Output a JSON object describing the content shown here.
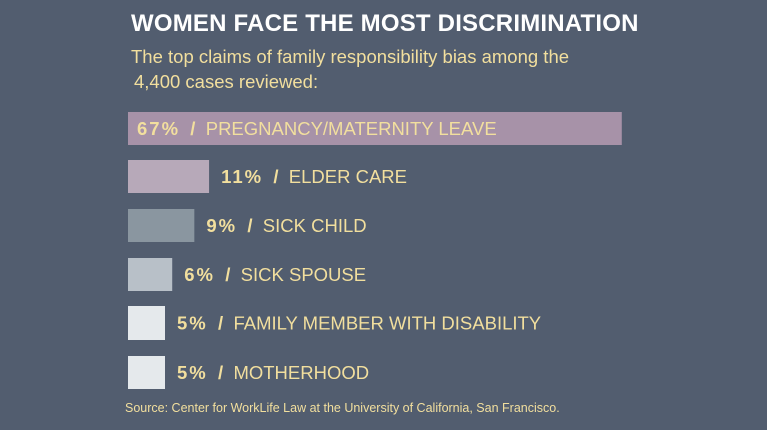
{
  "header": {
    "title": "WOMEN FACE THE MOST DISCRIMINATION",
    "subtitle_line1": "The top claims of family responsibility bias among the",
    "subtitle_line2": "4,400 cases reviewed:"
  },
  "footer": {
    "source": "Source: Center for WorkLife Law at the University of California, San Francisco."
  },
  "colors": {
    "background": "#525d6f",
    "title": "#ffffff",
    "text": "#f2df9e",
    "bar_colors": [
      "#a792a8",
      "#b7a9b9",
      "#8a96a0",
      "#b8c0c8",
      "#e5e9ec",
      "#e5e9ec"
    ]
  },
  "chart_data": {
    "type": "bar",
    "orientation": "horizontal",
    "categories": [
      "PREGNANCY/MATERNITY LEAVE",
      "ELDER CARE",
      "SICK CHILD",
      "SICK SPOUSE",
      "FAMILY MEMBER WITH DISABILITY",
      "MOTHERHOOD"
    ],
    "values": [
      67,
      11,
      9,
      6,
      5,
      5
    ],
    "value_labels": [
      "67%",
      "11%",
      "9%",
      "6%",
      "5%",
      "5%"
    ],
    "separator": "/",
    "unit": "%",
    "title": "WOMEN FACE THE MOST DISCRIMINATION",
    "grid": false,
    "legend": "none"
  }
}
